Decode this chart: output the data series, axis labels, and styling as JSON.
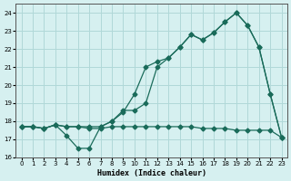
{
  "xlabel": "Humidex (Indice chaleur)",
  "ylabel": "",
  "bg_color": "#d6f0f0",
  "grid_color": "#b0d8d8",
  "line_color": "#1a6b5a",
  "xlim": [
    -0.5,
    23.5
  ],
  "ylim": [
    16,
    24.5
  ],
  "yticks": [
    16,
    17,
    18,
    19,
    20,
    21,
    22,
    23,
    24
  ],
  "xticks": [
    0,
    1,
    2,
    3,
    4,
    5,
    6,
    7,
    8,
    9,
    10,
    11,
    12,
    13,
    14,
    15,
    16,
    17,
    18,
    19,
    20,
    21,
    22,
    23
  ],
  "line1_x": [
    0,
    1,
    2,
    3,
    4,
    5,
    6,
    7,
    8,
    9,
    10,
    11,
    12,
    13,
    14,
    15,
    16,
    17,
    18,
    19,
    20,
    21,
    22,
    23
  ],
  "line1_y": [
    17.7,
    17.7,
    17.6,
    17.8,
    17.2,
    16.5,
    16.5,
    17.7,
    18.0,
    18.6,
    18.6,
    19.0,
    21.0,
    21.5,
    22.1,
    22.8,
    22.5,
    22.9,
    23.5,
    24.0,
    23.3,
    22.1,
    19.5,
    17.1
  ],
  "line2_x": [
    0,
    1,
    2,
    3,
    4,
    5,
    6,
    7,
    8,
    9,
    10,
    11,
    12,
    13,
    14,
    15,
    16,
    17,
    18,
    19,
    20,
    21,
    22,
    23
  ],
  "line2_y": [
    17.7,
    17.7,
    17.6,
    17.8,
    17.7,
    17.7,
    17.7,
    17.7,
    18.0,
    18.5,
    19.5,
    21.0,
    21.3,
    21.5,
    22.1,
    22.8,
    22.5,
    22.9,
    23.5,
    24.0,
    23.3,
    22.1,
    19.5,
    17.1
  ],
  "line3_x": [
    0,
    1,
    2,
    3,
    4,
    5,
    6,
    7,
    8,
    9,
    10,
    11,
    12,
    13,
    14,
    15,
    16,
    17,
    18,
    19,
    20,
    21,
    22,
    23
  ],
  "line3_y": [
    17.7,
    17.7,
    17.6,
    17.8,
    17.7,
    17.7,
    17.6,
    17.6,
    17.7,
    17.7,
    17.7,
    17.7,
    17.7,
    17.7,
    17.7,
    17.7,
    17.6,
    17.6,
    17.6,
    17.5,
    17.5,
    17.5,
    17.5,
    17.1
  ]
}
